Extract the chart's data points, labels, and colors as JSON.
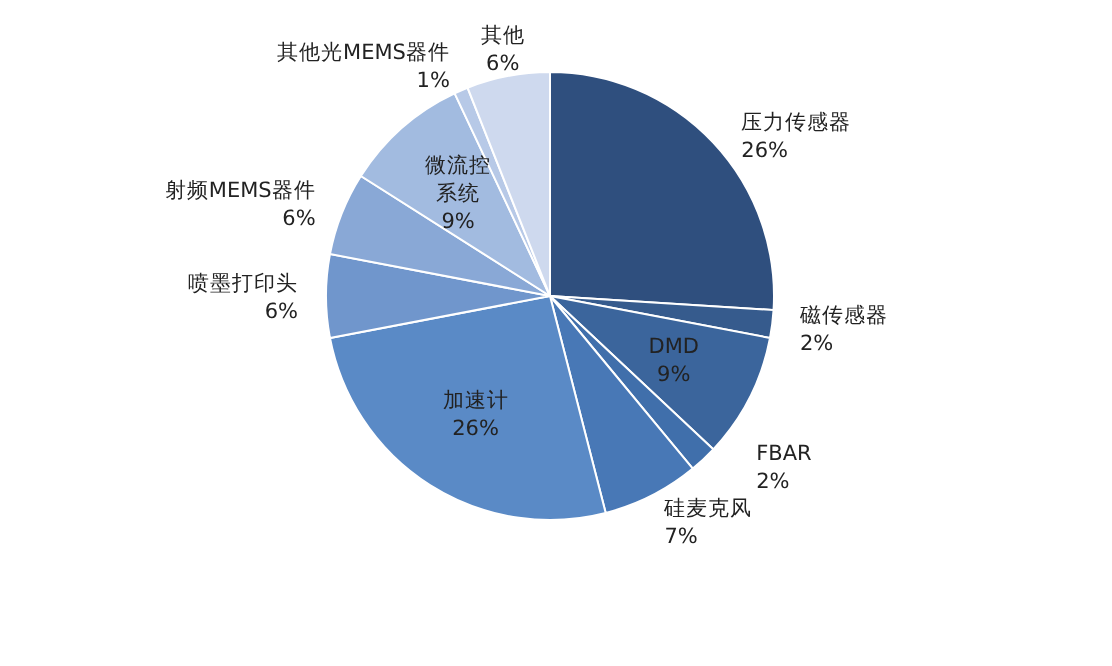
{
  "chart_data": {
    "type": "pie",
    "categories": [
      "压力传感器",
      "磁传感器",
      "DMD",
      "FBAR",
      "硅麦克风",
      "加速计",
      "喷墨打印头",
      "射频MEMS器件",
      "微流控系统",
      "其他光MEMS器件",
      "其他"
    ],
    "values": [
      26,
      2,
      9,
      2,
      7,
      26,
      6,
      6,
      9,
      1,
      6
    ],
    "colors": [
      "#2f4f7e",
      "#365b8d",
      "#3b659c",
      "#406fab",
      "#4878b6",
      "#5a8ac6",
      "#7096cc",
      "#89a8d6",
      "#a2bbe0",
      "#b7c9e7",
      "#ced9ee"
    ],
    "value_labels": [
      "26%",
      "2%",
      "9%",
      "2%",
      "7%",
      "26%",
      "6%",
      "6%",
      "9%",
      "1%",
      "6%"
    ]
  }
}
